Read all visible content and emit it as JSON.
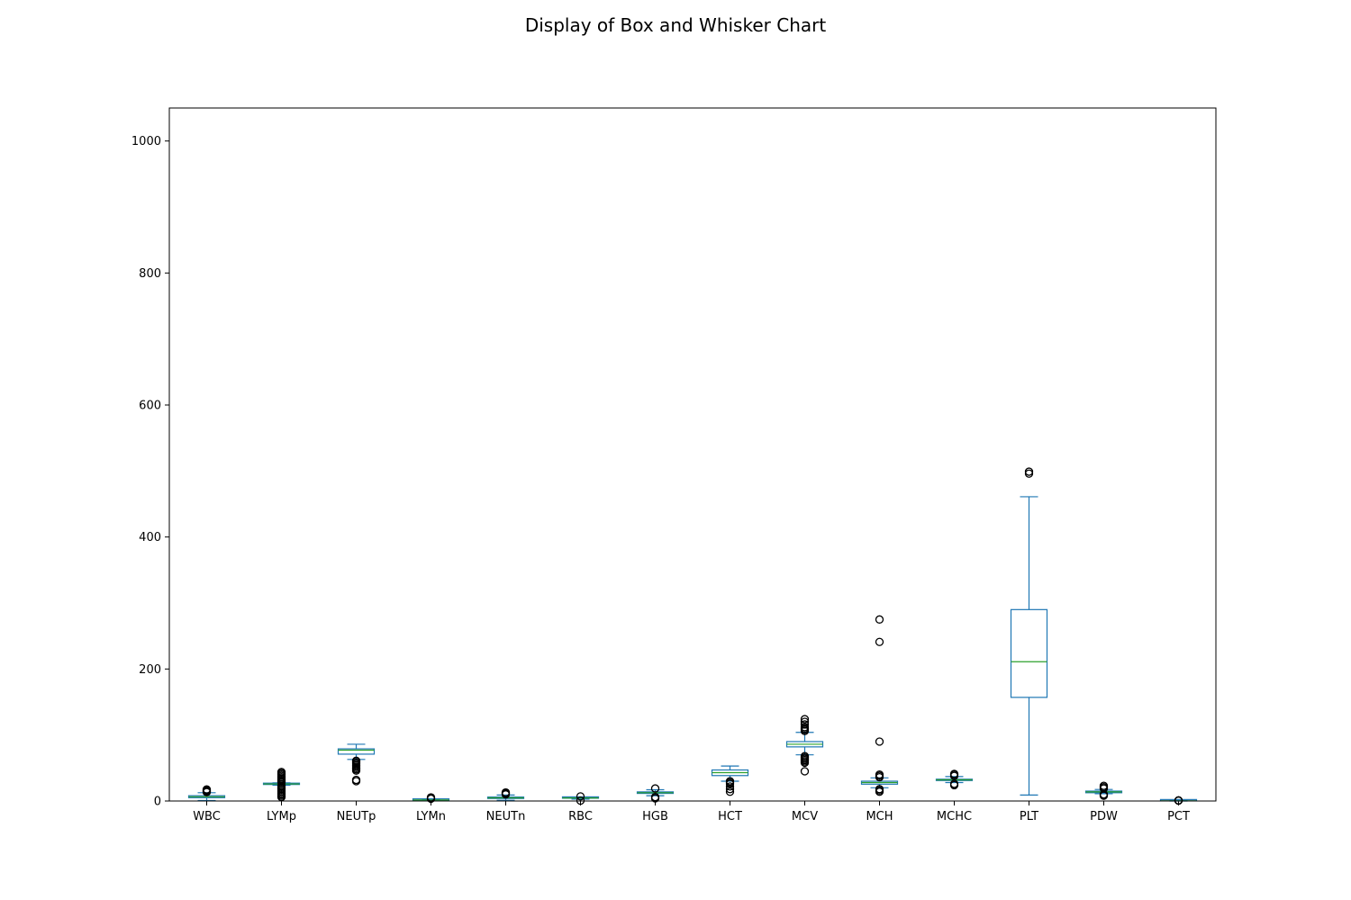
{
  "colors": {
    "box": "#1f77b4",
    "median": "#2ca02c",
    "flier": "#000000",
    "frame": "#000000",
    "background": "#ffffff"
  },
  "chart_data": {
    "type": "box",
    "title": "Display of Box and Whisker Chart",
    "xlabel": "",
    "ylabel": "",
    "ylim": [
      0,
      1050
    ],
    "yticks": [
      0,
      200,
      400,
      600,
      800,
      1000
    ],
    "grid": false,
    "legend": "none",
    "categories": [
      "WBC",
      "LYMp",
      "NEUTp",
      "LYMn",
      "NEUTn",
      "RBC",
      "HGB",
      "HCT",
      "MCV",
      "MCH",
      "MCHC",
      "PLT",
      "PDW",
      "PCT"
    ],
    "boxes": [
      {
        "category": "WBC",
        "whislo": 0.8,
        "q1": 5.0,
        "med": 6.4,
        "q3": 8.0,
        "whishi": 12.5,
        "fliers": [
          13.5,
          14.5,
          15.5,
          16.5,
          17.5
        ]
      },
      {
        "category": "LYMp",
        "whislo": 24.0,
        "q1": 25.0,
        "med": 25.8,
        "q3": 26.5,
        "whislo_note": "",
        "whishi": 27.5,
        "fliers": [
          6,
          8,
          10,
          12,
          14,
          16,
          18,
          20,
          22,
          23,
          28.5,
          30,
          32,
          34,
          36,
          38,
          40,
          42,
          44
        ]
      },
      {
        "category": "NEUTp",
        "whislo": 63.0,
        "q1": 71.0,
        "med": 77.0,
        "q3": 79.0,
        "whishi": 86.0,
        "fliers": [
          30,
          32,
          46,
          48,
          50,
          52,
          54,
          56,
          58,
          60,
          61
        ]
      },
      {
        "category": "LYMn",
        "whislo": 0.2,
        "q1": 1.2,
        "med": 1.6,
        "q3": 2.0,
        "whishi": 2.8,
        "fliers": [
          3.5,
          4.5,
          5.5
        ]
      },
      {
        "category": "NEUTn",
        "whislo": 1.0,
        "q1": 3.8,
        "med": 4.8,
        "q3": 6.0,
        "whishi": 9.0,
        "fliers": [
          10,
          11,
          12,
          13
        ]
      },
      {
        "category": "RBC",
        "whislo": 2.8,
        "q1": 4.2,
        "med": 4.6,
        "q3": 5.0,
        "whishi": 6.0,
        "fliers": [
          0.5,
          7.0
        ]
      },
      {
        "category": "HGB",
        "whislo": 8.0,
        "q1": 11.5,
        "med": 12.5,
        "q3": 13.8,
        "whishi": 17.0,
        "fliers": [
          4,
          6,
          19
        ]
      },
      {
        "category": "HCT",
        "whislo": 30.0,
        "q1": 38.5,
        "med": 43.0,
        "q3": 47.0,
        "whishi": 53.0,
        "fliers": [
          14,
          18,
          22,
          26,
          28,
          30
        ]
      },
      {
        "category": "MCV",
        "whislo": 70.0,
        "q1": 82.0,
        "med": 86.0,
        "q3": 90.0,
        "whishi": 104.0,
        "fliers": [
          45,
          58,
          60,
          62,
          64,
          66,
          68,
          106,
          108,
          110,
          112,
          116,
          120,
          124
        ]
      },
      {
        "category": "MCH",
        "whislo": 20.0,
        "q1": 25.5,
        "med": 28.0,
        "q3": 30.0,
        "whishi": 35.0,
        "fliers": [
          14,
          16,
          18,
          36,
          38,
          40,
          90,
          241,
          275
        ]
      },
      {
        "category": "MCHC",
        "whislo": 28.0,
        "q1": 31.0,
        "med": 32.0,
        "q3": 33.0,
        "whishi": 37.0,
        "fliers": [
          24,
          26,
          38,
          40,
          41
        ]
      },
      {
        "category": "PLT",
        "whislo": 9.0,
        "q1": 157.0,
        "med": 211.0,
        "q3": 290.0,
        "whishi": 461.0,
        "fliers": [
          496,
          499
        ]
      },
      {
        "category": "PDW",
        "whislo": 11.0,
        "q1": 12.5,
        "med": 13.8,
        "q3": 15.0,
        "whishi": 17.5,
        "fliers": [
          8,
          9,
          10,
          19,
          21,
          23
        ]
      },
      {
        "category": "PCT",
        "whislo": 0.05,
        "q1": 0.17,
        "med": 0.23,
        "q3": 0.3,
        "whishi": 0.5,
        "fliers": [
          0.6,
          0.8,
          1.0
        ]
      }
    ]
  }
}
